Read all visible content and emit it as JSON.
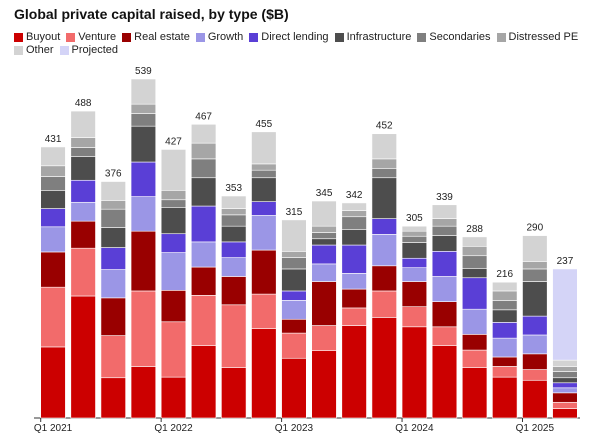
{
  "chart_data": {
    "type": "stacked-bar",
    "title": "Global private capital raised, by type ($B)",
    "categories": [
      "Q1 2021",
      null,
      null,
      null,
      "Q1 2022",
      null,
      null,
      null,
      "Q1 2023",
      null,
      null,
      null,
      "Q1 2024",
      null,
      null,
      null,
      "Q1 2025",
      null
    ],
    "totals": [
      431,
      488,
      376,
      539,
      427,
      467,
      353,
      455,
      315,
      345,
      342,
      452,
      305,
      339,
      288,
      216,
      290,
      237
    ],
    "series": [
      {
        "name": "Buyout",
        "color": "#cc0000",
        "values": [
          113,
          194,
          64,
          82,
          65,
          115,
          80,
          142,
          95,
          107,
          147,
          160,
          145,
          115,
          80,
          65,
          60,
          15
        ]
      },
      {
        "name": "Venture",
        "color": "#f26b6b",
        "values": [
          95,
          76,
          67,
          120,
          88,
          80,
          100,
          55,
          40,
          40,
          28,
          42,
          32,
          30,
          28,
          17,
          17,
          10
        ]
      },
      {
        "name": "Real estate",
        "color": "#990000",
        "values": [
          56,
          43,
          60,
          95,
          50,
          45,
          45,
          70,
          22,
          70,
          30,
          40,
          40,
          40,
          25,
          15,
          25,
          15
        ]
      },
      {
        "name": "Growth",
        "color": "#9b96e6",
        "values": [
          40,
          30,
          45,
          55,
          60,
          40,
          30,
          55,
          30,
          28,
          25,
          50,
          22,
          40,
          40,
          30,
          30,
          8
        ]
      },
      {
        "name": "Direct lending",
        "color": "#5a3fd6",
        "values": [
          29,
          35,
          35,
          55,
          30,
          57,
          25,
          22,
          15,
          30,
          45,
          25,
          15,
          40,
          50,
          25,
          30,
          8
        ]
      },
      {
        "name": "Infrastructure",
        "color": "#4d4d4d",
        "values": [
          29,
          38,
          32,
          57,
          42,
          45,
          25,
          38,
          35,
          10,
          25,
          65,
          25,
          25,
          15,
          20,
          55,
          8
        ]
      },
      {
        "name": "Secondaries",
        "color": "#7f7f7f",
        "values": [
          22,
          14,
          29,
          20,
          12,
          30,
          18,
          12,
          18,
          10,
          20,
          15,
          10,
          15,
          20,
          15,
          20,
          10
        ]
      },
      {
        "name": "Distressed PE",
        "color": "#a6a6a6",
        "values": [
          17,
          16,
          14,
          15,
          15,
          25,
          10,
          10,
          10,
          10,
          10,
          15,
          8,
          12,
          15,
          15,
          12,
          8
        ]
      },
      {
        "name": "Other",
        "color": "#d3d3d3",
        "values": [
          30,
          42,
          30,
          40,
          65,
          30,
          20,
          51,
          50,
          40,
          12,
          40,
          8,
          22,
          15,
          14,
          41,
          10
        ]
      },
      {
        "name": "Projected",
        "color": "#d4d4f7",
        "values": [
          0,
          0,
          0,
          0,
          0,
          0,
          0,
          0,
          0,
          0,
          0,
          0,
          0,
          0,
          0,
          0,
          0,
          145
        ]
      }
    ]
  }
}
